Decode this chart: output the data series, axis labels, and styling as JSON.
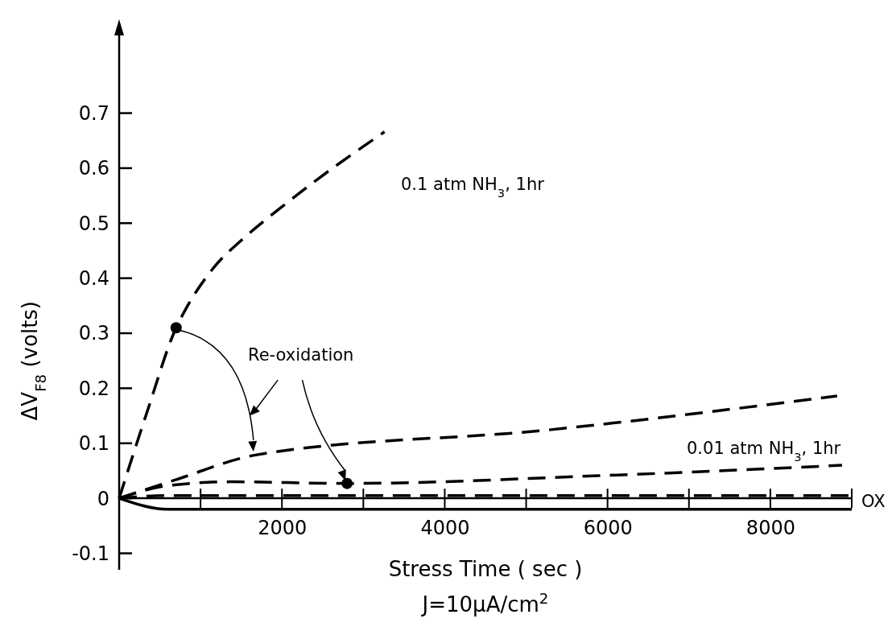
{
  "chart_data": {
    "type": "line",
    "xlabel": "Stress Time ( sec )",
    "ylabel": "ΔV$_{F8}$ (volts)",
    "xlim": [
      0,
      9000
    ],
    "ylim": [
      -0.13,
      0.85
    ],
    "xticks": [
      2000,
      4000,
      6000,
      8000
    ],
    "yticks": [
      -0.1,
      0,
      0.1,
      0.2,
      0.3,
      0.4,
      0.5,
      0.6,
      0.7
    ],
    "grid": false,
    "line_style": "dashed",
    "series": [
      {
        "color": "#000000",
        "x": [
          0,
          350,
          700,
          800,
          1150,
          1540,
          1950,
          2430,
          3260
        ],
        "values": [
          0,
          0.16,
          0.31,
          0.339,
          0.417,
          0.474,
          0.524,
          0.579,
          0.666
        ]
      },
      {
        "color": "#000000",
        "x": [
          0,
          680,
          1690,
          5260,
          8820
        ],
        "values": [
          0,
          0.033,
          0.079,
          0.124,
          0.186
        ]
      },
      {
        "color": "#000000",
        "x": [
          0,
          600,
          1370,
          2800,
          5890,
          8880
        ],
        "values": [
          0,
          0.023,
          0.03,
          0.027,
          0.041,
          0.06
        ]
      },
      {
        "color": "#000000",
        "x": [
          0,
          600,
          9000
        ],
        "values": [
          0,
          0.005,
          0.005
        ]
      },
      {
        "color": "#000000",
        "line_style": "solid",
        "x": [
          0,
          600,
          9000
        ],
        "values": [
          0,
          -0.02,
          -0.02
        ]
      },
      {
        "type": "scatter",
        "marker": "circle",
        "color": "#000000",
        "x": [
          700,
          2800
        ],
        "values": [
          0.31,
          0.027
        ]
      }
    ],
    "annotations": [
      "0.1 atm NH$_{3}$, 1hr",
      "0.01 atm NH$_{3}$, 1hr",
      "OX",
      "Re-oxidation",
      "J=10μA/cm$^{2}$"
    ]
  }
}
